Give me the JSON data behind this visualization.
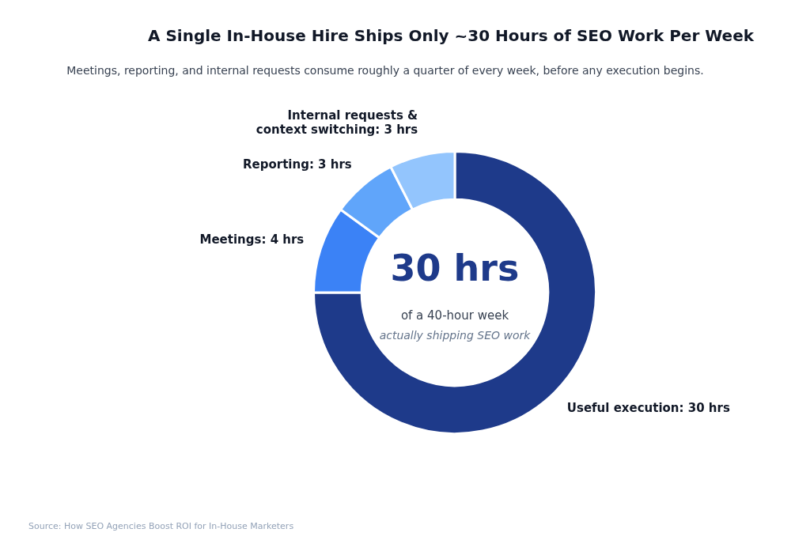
{
  "chart_data": {
    "type": "donut",
    "title": "A Single In-House Hire Ships Only ~30 Hours of SEO Work Per Week",
    "subtitle": "Meetings, reporting, and internal requests consume roughly a quarter of every week, before any execution begins.",
    "categories": [
      "Useful execution",
      "Meetings",
      "Reporting",
      "Internal requests & context switching"
    ],
    "values": [
      30,
      4,
      3,
      3
    ],
    "value_labels": [
      "30 hrs",
      "4 hrs",
      "3 hrs",
      "3 hrs"
    ],
    "colors": [
      "#1e3a8a",
      "#3b82f6",
      "#60a5fa",
      "#93c5fd"
    ],
    "legend": false,
    "annotations": [
      "30 hrs",
      "of a 40-hour week",
      "actually shipping SEO work",
      "Source: How SEO Agencies Boost ROI for In-House Marketers"
    ]
  }
}
